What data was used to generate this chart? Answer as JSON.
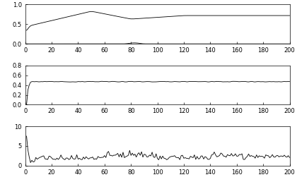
{
  "xlim": [
    0,
    200
  ],
  "subplot1_ylim": [
    0,
    1
  ],
  "subplot1_yticks": [
    0,
    0.5,
    1
  ],
  "subplot2_ylim": [
    0,
    0.8
  ],
  "subplot2_yticks": [
    0,
    0.2,
    0.4,
    0.6,
    0.8
  ],
  "subplot3_ylim": [
    0,
    10
  ],
  "subplot3_yticks": [
    0,
    5,
    10
  ],
  "xticks": [
    0,
    20,
    40,
    60,
    80,
    100,
    120,
    140,
    160,
    180,
    200
  ],
  "line_color": "#000000",
  "bg_color": "#ffffff",
  "linewidth": 0.6,
  "tick_labelsize": 6
}
